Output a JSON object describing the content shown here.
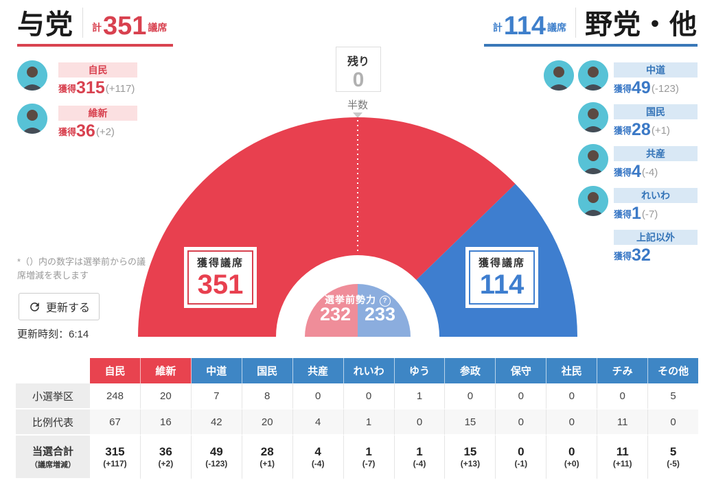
{
  "ruling": {
    "title": "与党",
    "total_prefix": "計",
    "total": "351",
    "total_suffix": "議席",
    "accent_color": "#d8414f",
    "underline_color": "#d94350",
    "parties": [
      {
        "name": "自民",
        "won_label": "獲得",
        "won": "315",
        "change": "(+117)",
        "avatars": 1
      },
      {
        "name": "維新",
        "won_label": "獲得",
        "won": "36",
        "change": "(+2)",
        "avatars": 1
      }
    ]
  },
  "opposition": {
    "title": "野党・他",
    "total_prefix": "計",
    "total": "114",
    "total_suffix": "議席",
    "accent_color": "#3e7fcb",
    "underline_color": "#3a78b8",
    "parties": [
      {
        "name": "中道",
        "won_label": "獲得",
        "won": "49",
        "change": "(-123)",
        "avatars": 2
      },
      {
        "name": "国民",
        "won_label": "獲得",
        "won": "28",
        "change": "(+1)",
        "avatars": 1
      },
      {
        "name": "共産",
        "won_label": "獲得",
        "won": "4",
        "change": "(-4)",
        "avatars": 1
      },
      {
        "name": "れいわ",
        "won_label": "獲得",
        "won": "1",
        "change": "(-7)",
        "avatars": 1
      },
      {
        "name": "上記以外",
        "won_label": "獲得",
        "won": "32",
        "change": "",
        "avatars": 0
      }
    ]
  },
  "remaining": {
    "label": "残り",
    "value": "0",
    "half_label": "半数"
  },
  "chart": {
    "won_box_label": "獲得議席",
    "ruling_won": "351",
    "opposition_won": "114",
    "pre_label": "選挙前勢力",
    "help_icon": "?",
    "pre_ruling": "232",
    "pre_opposition": "233",
    "colors": {
      "ruling": "#e8404f",
      "opposition": "#3e7ecf",
      "pre_ruling": "#ef8d99",
      "pre_opposition": "#8badde"
    }
  },
  "side_note": "*（）内の数字は選挙前からの議席増減を表します",
  "refresh": {
    "label": "更新する"
  },
  "updated_time": "更新時刻：6:14",
  "table": {
    "header_colors": {
      "ruling": "#e8434f",
      "opposition": "#3e86c5"
    },
    "columns": [
      {
        "label": "自民",
        "bloc": "ruling"
      },
      {
        "label": "維新",
        "bloc": "ruling"
      },
      {
        "label": "中道",
        "bloc": "opposition"
      },
      {
        "label": "国民",
        "bloc": "opposition"
      },
      {
        "label": "共産",
        "bloc": "opposition"
      },
      {
        "label": "れいわ",
        "bloc": "opposition"
      },
      {
        "label": "ゆう",
        "bloc": "opposition"
      },
      {
        "label": "参政",
        "bloc": "opposition"
      },
      {
        "label": "保守",
        "bloc": "opposition"
      },
      {
        "label": "社民",
        "bloc": "opposition"
      },
      {
        "label": "チみ",
        "bloc": "opposition"
      },
      {
        "label": "その他",
        "bloc": "opposition"
      }
    ],
    "rows": [
      {
        "label": "小選挙区",
        "values": [
          "248",
          "20",
          "7",
          "8",
          "0",
          "0",
          "1",
          "0",
          "0",
          "0",
          "0",
          "5"
        ]
      },
      {
        "label": "比例代表",
        "values": [
          "67",
          "16",
          "42",
          "20",
          "4",
          "1",
          "0",
          "15",
          "0",
          "0",
          "11",
          "0"
        ]
      }
    ],
    "total_row": {
      "label": "当選合計",
      "sublabel": "（議席増減）",
      "values": [
        "315",
        "36",
        "49",
        "28",
        "4",
        "1",
        "1",
        "15",
        "0",
        "0",
        "11",
        "5"
      ],
      "changes": [
        "(+117)",
        "(+2)",
        "(-123)",
        "(+1)",
        "(-4)",
        "(-7)",
        "(-4)",
        "(+13)",
        "(-1)",
        "(+0)",
        "(+11)",
        "(-5)"
      ]
    }
  },
  "chart_data": [
    {
      "type": "pie",
      "variant": "semicircle_donut",
      "title": "",
      "total_seats": 465,
      "series": [
        {
          "name": "獲得議席",
          "ring": "outer",
          "slices": [
            {
              "label": "与党",
              "value": 351,
              "color": "#e8404f"
            },
            {
              "label": "野党・他",
              "value": 114,
              "color": "#3e7ecf"
            }
          ]
        },
        {
          "name": "選挙前勢力",
          "ring": "inner",
          "slices": [
            {
              "label": "与党",
              "value": 232,
              "color": "#ef8d99"
            },
            {
              "label": "野党・他",
              "value": 233,
              "color": "#8badde"
            }
          ]
        }
      ],
      "annotations": {
        "remaining_label": "残り",
        "remaining_value": 0,
        "half_label": "半数"
      },
      "legend_position": "sides"
    },
    {
      "type": "table",
      "columns": [
        "自民",
        "維新",
        "中道",
        "国民",
        "共産",
        "れいわ",
        "ゆう",
        "参政",
        "保守",
        "社民",
        "チみ",
        "その他"
      ],
      "rows": [
        {
          "label": "小選挙区",
          "values": [
            248,
            20,
            7,
            8,
            0,
            0,
            1,
            0,
            0,
            0,
            0,
            5
          ]
        },
        {
          "label": "比例代表",
          "values": [
            67,
            16,
            42,
            20,
            4,
            1,
            0,
            15,
            0,
            0,
            11,
            0
          ]
        },
        {
          "label": "当選合計（議席増減）",
          "values": [
            315,
            36,
            49,
            28,
            4,
            1,
            1,
            15,
            0,
            0,
            11,
            5
          ],
          "changes": [
            117,
            2,
            -123,
            1,
            -4,
            -7,
            -4,
            13,
            -1,
            0,
            11,
            -5
          ]
        }
      ]
    }
  ]
}
